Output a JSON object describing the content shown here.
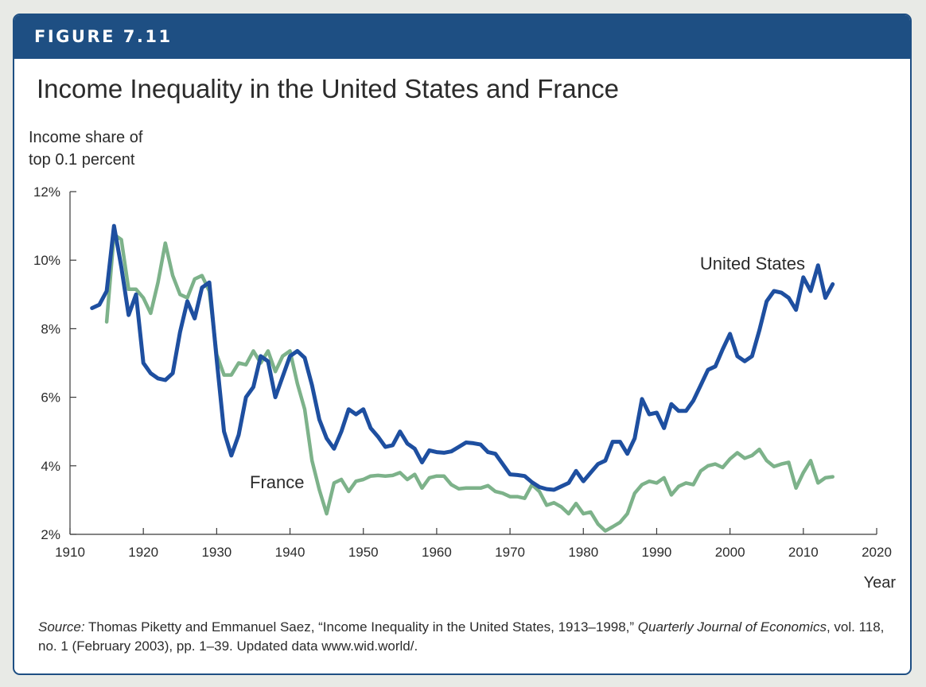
{
  "figure": {
    "label": "FIGURE 7.11",
    "title": "Income Inequality in the United States and France"
  },
  "colors": {
    "header": "#1e4f83",
    "us_line": "#1e4fa0",
    "france_line": "#7db28a"
  },
  "chart_data": {
    "type": "line",
    "title": "Income Inequality in the United States and France",
    "ylabel_lines": [
      "Income share of",
      "top 0.1 percent"
    ],
    "xlabel": "Year",
    "xlim": [
      1910,
      2020
    ],
    "ylim": [
      2,
      12
    ],
    "x_ticks": [
      1910,
      1920,
      1930,
      1940,
      1950,
      1960,
      1970,
      1980,
      1990,
      2000,
      2010,
      2020
    ],
    "y_ticks": [
      2,
      4,
      6,
      8,
      10,
      12
    ],
    "y_tick_labels": [
      "2%",
      "4%",
      "6%",
      "8%",
      "10%",
      "12%"
    ],
    "grid": false,
    "series": [
      {
        "name": "United States",
        "x": [
          1913,
          1914,
          1915,
          1916,
          1917,
          1918,
          1919,
          1920,
          1921,
          1922,
          1923,
          1924,
          1925,
          1926,
          1927,
          1928,
          1929,
          1930,
          1931,
          1932,
          1933,
          1934,
          1935,
          1936,
          1937,
          1938,
          1939,
          1940,
          1941,
          1942,
          1943,
          1944,
          1945,
          1946,
          1947,
          1948,
          1949,
          1950,
          1951,
          1952,
          1953,
          1954,
          1955,
          1956,
          1957,
          1958,
          1959,
          1960,
          1961,
          1962,
          1963,
          1964,
          1965,
          1966,
          1967,
          1968,
          1969,
          1970,
          1971,
          1972,
          1973,
          1974,
          1975,
          1976,
          1977,
          1978,
          1979,
          1980,
          1981,
          1982,
          1983,
          1984,
          1985,
          1986,
          1987,
          1988,
          1989,
          1990,
          1991,
          1992,
          1993,
          1994,
          1995,
          1996,
          1997,
          1998,
          1999,
          2000,
          2001,
          2002,
          2003,
          2004,
          2005,
          2006,
          2007,
          2008,
          2009,
          2010,
          2011,
          2012,
          2013,
          2014
        ],
        "values": [
          8.6,
          8.7,
          9.1,
          11.0,
          9.8,
          8.4,
          9.0,
          7.0,
          6.7,
          6.55,
          6.5,
          6.7,
          7.9,
          8.8,
          8.3,
          9.2,
          9.35,
          7.1,
          5.0,
          4.3,
          4.9,
          6.0,
          6.3,
          7.2,
          7.05,
          6.0,
          6.6,
          7.2,
          7.35,
          7.15,
          6.35,
          5.35,
          4.8,
          4.5,
          5.0,
          5.65,
          5.5,
          5.65,
          5.1,
          4.85,
          4.55,
          4.6,
          5.0,
          4.65,
          4.5,
          4.1,
          4.45,
          4.4,
          4.38,
          4.42,
          4.55,
          4.68,
          4.66,
          4.62,
          4.4,
          4.35,
          4.05,
          3.75,
          3.73,
          3.7,
          3.52,
          3.38,
          3.32,
          3.3,
          3.4,
          3.5,
          3.85,
          3.55,
          3.8,
          4.05,
          4.15,
          4.7,
          4.7,
          4.35,
          4.8,
          5.95,
          5.5,
          5.55,
          5.1,
          5.8,
          5.6,
          5.6,
          5.9,
          6.35,
          6.8,
          6.9,
          7.4,
          7.85,
          7.2,
          7.05,
          7.2,
          7.95,
          8.8,
          9.1,
          9.05,
          8.9,
          8.55,
          9.5,
          9.1,
          9.85,
          8.9,
          9.3
        ]
      },
      {
        "name": "France",
        "x": [
          1915,
          1916,
          1917,
          1918,
          1919,
          1920,
          1921,
          1922,
          1923,
          1924,
          1925,
          1926,
          1927,
          1928,
          1929,
          1930,
          1931,
          1932,
          1933,
          1934,
          1935,
          1936,
          1937,
          1938,
          1939,
          1940,
          1941,
          1942,
          1943,
          1944,
          1945,
          1946,
          1947,
          1948,
          1949,
          1950,
          1951,
          1952,
          1953,
          1954,
          1955,
          1956,
          1957,
          1958,
          1959,
          1960,
          1961,
          1962,
          1963,
          1964,
          1965,
          1966,
          1967,
          1968,
          1969,
          1970,
          1971,
          1972,
          1973,
          1974,
          1975,
          1976,
          1977,
          1978,
          1979,
          1980,
          1981,
          1982,
          1983,
          1984,
          1985,
          1986,
          1987,
          1988,
          1989,
          1990,
          1991,
          1992,
          1993,
          1994,
          1995,
          1996,
          1997,
          1998,
          1999,
          2000,
          2001,
          2002,
          2003,
          2004,
          2005,
          2006,
          2007,
          2008,
          2009,
          2010,
          2011,
          2012,
          2013,
          2014
        ],
        "values": [
          8.2,
          10.75,
          10.6,
          9.15,
          9.15,
          8.9,
          8.45,
          9.35,
          10.5,
          9.55,
          9.0,
          8.9,
          9.45,
          9.55,
          9.1,
          7.25,
          6.65,
          6.65,
          7.0,
          6.95,
          7.35,
          7.0,
          7.35,
          6.75,
          7.2,
          7.35,
          6.4,
          5.65,
          4.15,
          3.3,
          2.6,
          3.5,
          3.6,
          3.25,
          3.55,
          3.6,
          3.7,
          3.72,
          3.7,
          3.72,
          3.8,
          3.6,
          3.75,
          3.35,
          3.65,
          3.7,
          3.7,
          3.45,
          3.33,
          3.35,
          3.35,
          3.35,
          3.42,
          3.25,
          3.2,
          3.1,
          3.1,
          3.05,
          3.45,
          3.25,
          2.85,
          2.92,
          2.8,
          2.6,
          2.9,
          2.6,
          2.65,
          2.3,
          2.1,
          2.22,
          2.35,
          2.6,
          3.2,
          3.45,
          3.55,
          3.5,
          3.65,
          3.15,
          3.4,
          3.5,
          3.45,
          3.85,
          4.0,
          4.05,
          3.95,
          4.2,
          4.38,
          4.22,
          4.3,
          4.48,
          4.15,
          3.98,
          4.05,
          4.1,
          3.35,
          3.8,
          4.15,
          3.5,
          3.65,
          3.68
        ]
      }
    ],
    "annotations": [
      {
        "text": "United States",
        "series": "United States"
      },
      {
        "text": "France",
        "series": "France"
      }
    ]
  },
  "source": {
    "label": "Source:",
    "text_1": " Thomas Piketty and Emmanuel Saez, “Income Inequality in the United States, 1913–1998,” ",
    "journal": "Quarterly Journal of Economics",
    "text_2": ", vol. 118, no. 1 (February 2003), pp. 1–39. Updated data www.wid.world/."
  }
}
